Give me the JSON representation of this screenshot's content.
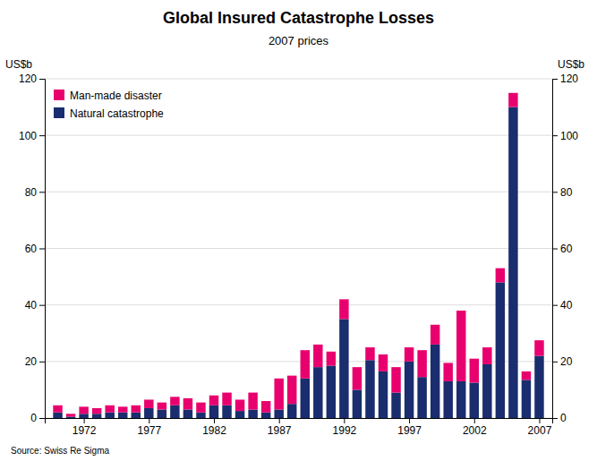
{
  "chart_data": {
    "type": "bar",
    "title": "Global Insured Catastrophe Losses",
    "subtitle": "2007 prices",
    "ylabel": "US$b",
    "y2label": "US$b",
    "source": "Source: Swiss Re Sigma",
    "stacked": true,
    "grid": true,
    "legend": "upper left",
    "x": [
      1970,
      1971,
      1972,
      1973,
      1974,
      1975,
      1976,
      1977,
      1978,
      1979,
      1980,
      1981,
      1982,
      1983,
      1984,
      1985,
      1986,
      1987,
      1988,
      1989,
      1990,
      1991,
      1992,
      1993,
      1994,
      1995,
      1996,
      1997,
      1998,
      1999,
      2000,
      2001,
      2002,
      2003,
      2004,
      2005,
      2006,
      2007
    ],
    "series": [
      {
        "name": "Natural catastrophe",
        "color": "#1a2d6e",
        "values": [
          2.0,
          0.5,
          1.5,
          1.5,
          2.0,
          2.0,
          2.0,
          3.5,
          3.0,
          4.5,
          3.0,
          2.0,
          4.5,
          4.5,
          2.5,
          3.0,
          2.0,
          3.0,
          5.0,
          14.0,
          18.0,
          18.5,
          35.0,
          10.0,
          20.5,
          16.5,
          9.0,
          20.0,
          14.5,
          26.0,
          13.0,
          13.0,
          12.5,
          19.0,
          48.0,
          110.0,
          13.5,
          22.0
        ]
      },
      {
        "name": "Man-made disaster",
        "color": "#e8006e",
        "values": [
          2.5,
          1.0,
          2.5,
          2.0,
          2.5,
          2.0,
          2.5,
          3.0,
          2.5,
          3.0,
          4.0,
          3.5,
          3.5,
          4.5,
          4.0,
          6.0,
          4.0,
          11.0,
          10.0,
          10.0,
          8.0,
          5.0,
          7.0,
          8.0,
          4.5,
          6.0,
          9.0,
          5.0,
          9.5,
          7.0,
          6.5,
          25.0,
          8.5,
          6.0,
          5.0,
          5.0,
          3.0,
          5.5
        ]
      }
    ],
    "xlim": [
      1969,
      2008
    ],
    "xticks": [
      1972,
      1977,
      1982,
      1987,
      1992,
      1997,
      2002,
      2007
    ],
    "ylim": [
      0,
      120
    ],
    "yticks": [
      0,
      20,
      40,
      60,
      80,
      100,
      120
    ],
    "y2lim": [
      0,
      120
    ],
    "y2ticks": [
      0,
      20,
      40,
      60,
      80,
      100,
      120
    ]
  }
}
